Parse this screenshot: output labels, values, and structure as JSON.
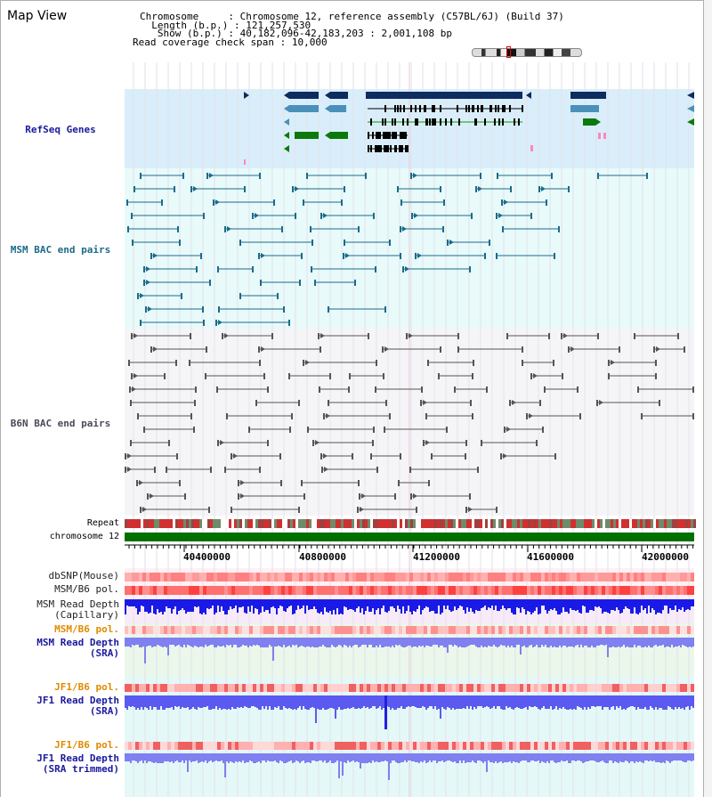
{
  "app": {
    "title": "Map View"
  },
  "info": {
    "chromosome_label": "Chromosome    ",
    "chromosome_value": "Chromosome 12, reference assembly (C57BL/6J) (Build 37)",
    "length_label": "  Length (b.p.)",
    "length_value": "121,257,530",
    "show_label": "   Show (b.p.)",
    "show_value": "40,182,096-42,183,203 : 2,001,108 bp",
    "coverage_label": "Read coverage check span",
    "coverage_value": "10,000"
  },
  "tracks": {
    "refseq": "RefSeq Genes",
    "msm_bac": "MSM BAC end pairs",
    "b6n_bac": "B6N BAC end pairs",
    "repeat": "Repeat",
    "chromosome": "chromosome 12",
    "dbsnp": "dbSNP(Mouse)",
    "msm_pol_1": "MSM/B6 pol.",
    "msm_depth_cap_1": "MSM Read Depth",
    "msm_depth_cap_2": "(Capillary)",
    "msm_pol_2": "MSM/B6 pol.",
    "msm_depth_sra_1": "MSM Read Depth",
    "msm_depth_sra_2": "(SRA)",
    "jf1_pol_1": "JF1/B6 pol.",
    "jf1_depth_sra_1": "JF1 Read Depth",
    "jf1_depth_sra_2": "(SRA)",
    "jf1_pol_2": "JF1/B6 pol.",
    "jf1_depth_trim_1": "JF1 Read Depth",
    "jf1_depth_trim_2": "(SRA trimmed)"
  },
  "axis": {
    "ticks": [
      "40400000",
      "40800000",
      "41200000",
      "41600000",
      "42000000"
    ]
  },
  "colors": {
    "refseq_bg": "#d9eefa",
    "msm_bg": "#e8fafa",
    "b6n_bg": "#f5f5f8",
    "gene_dark": "#0d2d5f",
    "gene_mid": "#4a90b8",
    "gene_green": "#0a7a0a",
    "msm_line": "#1c6b8a",
    "b6n_line": "#555555",
    "chromosome_green": "#007000",
    "depth_blue": "#1a1ae6",
    "depth_light": "#8080f0",
    "label_blue": "#1a1a9e",
    "label_orange": "#e08a00"
  }
}
